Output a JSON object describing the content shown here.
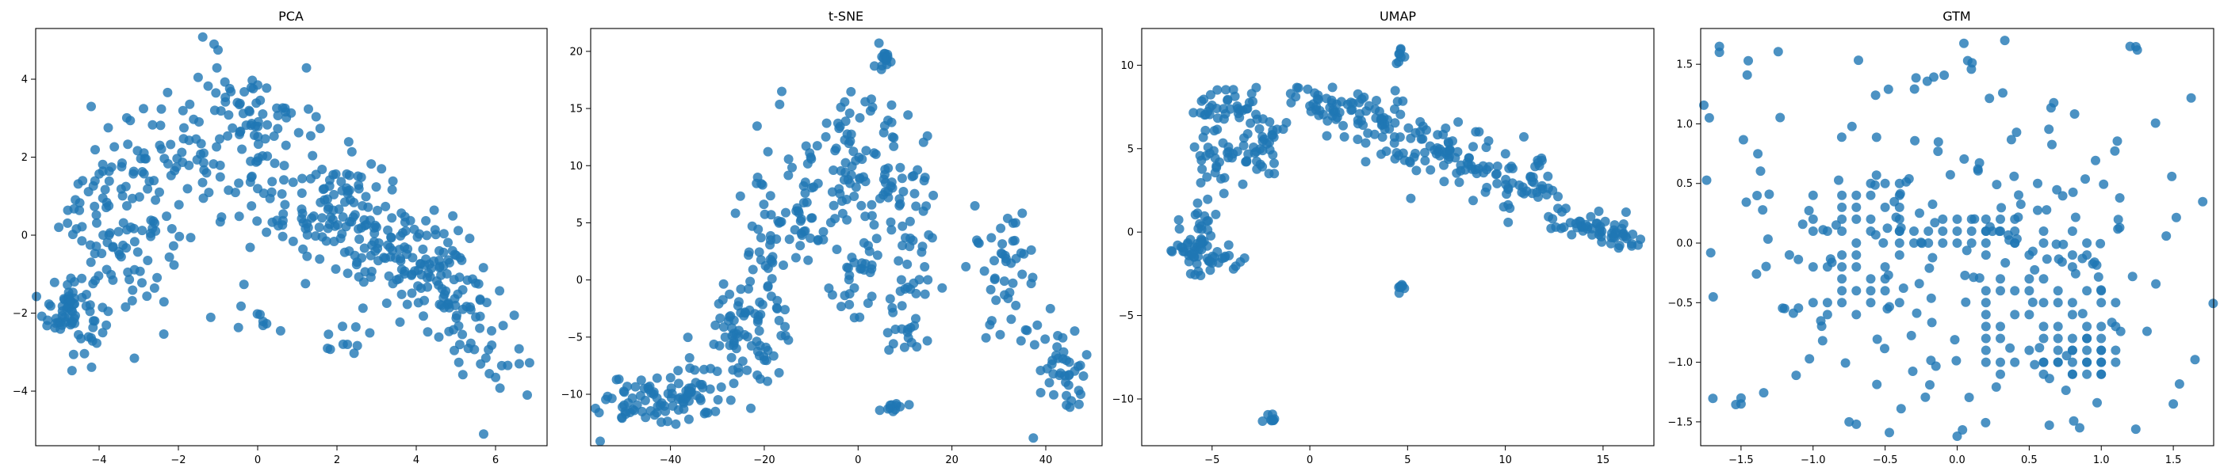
{
  "chart_data": [
    {
      "type": "scatter",
      "title": "PCA",
      "xlabel": "",
      "ylabel": "",
      "xlim": [
        -5.6,
        7.3
      ],
      "ylim": [
        -5.4,
        5.3
      ],
      "xticks": [
        -4,
        -2,
        0,
        2,
        4,
        6
      ],
      "yticks": [
        -4,
        -2,
        0,
        2,
        4
      ],
      "xtick_labels": [
        "−4",
        "−2",
        "0",
        "2",
        "4",
        "6"
      ],
      "ytick_labels": [
        "−4",
        "−2",
        "0",
        "2",
        "4"
      ],
      "color": "#1f77b4",
      "grid": false,
      "clusters": [
        {
          "cx": -4.7,
          "cy": -1.9,
          "sx": 0.35,
          "sy": 0.55,
          "n": 70
        },
        {
          "cx": -4.0,
          "cy": 0.8,
          "sx": 0.5,
          "sy": 0.9,
          "n": 55
        },
        {
          "cx": -3.2,
          "cy": -0.6,
          "sx": 0.6,
          "sy": 1.0,
          "n": 45
        },
        {
          "cx": -2.2,
          "cy": 1.8,
          "sx": 0.6,
          "sy": 0.8,
          "n": 40
        },
        {
          "cx": -1.0,
          "cy": 2.4,
          "sx": 0.7,
          "sy": 0.9,
          "n": 45
        },
        {
          "cx": 0.2,
          "cy": 3.0,
          "sx": 0.6,
          "sy": 0.6,
          "n": 35
        },
        {
          "cx": 0.9,
          "cy": 1.2,
          "sx": 0.9,
          "sy": 1.0,
          "n": 60
        },
        {
          "cx": 2.1,
          "cy": 0.6,
          "sx": 0.6,
          "sy": 0.7,
          "n": 70
        },
        {
          "cx": 3.3,
          "cy": -0.3,
          "sx": 0.6,
          "sy": 0.7,
          "n": 55
        },
        {
          "cx": 4.3,
          "cy": -0.9,
          "sx": 0.6,
          "sy": 0.6,
          "n": 60
        },
        {
          "cx": 5.1,
          "cy": -1.6,
          "sx": 0.6,
          "sy": 0.8,
          "n": 45
        },
        {
          "cx": 6.0,
          "cy": -3.0,
          "sx": 0.5,
          "sy": 0.6,
          "n": 15
        },
        {
          "cx": 0.0,
          "cy": -2.1,
          "sx": 0.6,
          "sy": 0.3,
          "n": 10
        },
        {
          "cx": 2.0,
          "cy": -2.6,
          "sx": 0.4,
          "sy": 0.3,
          "n": 10
        }
      ],
      "points": [
        [
          -1.1,
          4.9
        ],
        [
          -1.0,
          4.75
        ],
        [
          -4.2,
          3.3
        ],
        [
          5.7,
          -5.1
        ],
        [
          6.8,
          -4.1
        ],
        [
          0,
          3.85
        ]
      ]
    },
    {
      "type": "scatter",
      "title": "t-SNE",
      "xlabel": "",
      "ylabel": "",
      "xlim": [
        -57,
        52
      ],
      "ylim": [
        -14.5,
        22
      ],
      "xticks": [
        -40,
        -20,
        0,
        20,
        40
      ],
      "yticks": [
        -10,
        -5,
        0,
        5,
        10,
        15,
        20
      ],
      "xtick_labels": [
        "−40",
        "−20",
        "0",
        "20",
        "40"
      ],
      "ytick_labels": [
        "−10",
        "−5",
        "0",
        "5",
        "10",
        "15",
        "20"
      ],
      "color": "#1f77b4",
      "grid": false,
      "clusters": [
        {
          "cx": -46,
          "cy": -10.5,
          "sx": 5,
          "sy": 1.2,
          "n": 55
        },
        {
          "cx": -36,
          "cy": -10.0,
          "sx": 3.5,
          "sy": 1.5,
          "n": 40
        },
        {
          "cx": -28,
          "cy": -4.0,
          "sx": 2.5,
          "sy": 2.5,
          "n": 30
        },
        {
          "cx": -22,
          "cy": -6.0,
          "sx": 3,
          "sy": 2.5,
          "n": 35
        },
        {
          "cx": -20,
          "cy": 3.0,
          "sx": 3,
          "sy": 5,
          "n": 55
        },
        {
          "cx": -12,
          "cy": 6.0,
          "sx": 3,
          "sy": 3,
          "n": 40
        },
        {
          "cx": -3,
          "cy": 10.5,
          "sx": 3.5,
          "sy": 3,
          "n": 45
        },
        {
          "cx": 4,
          "cy": 10.0,
          "sx": 3,
          "sy": 3.5,
          "n": 40
        },
        {
          "cx": 0,
          "cy": 0.5,
          "sx": 3,
          "sy": 2,
          "n": 30
        },
        {
          "cx": 12,
          "cy": 5.0,
          "sx": 3,
          "sy": 3,
          "n": 40
        },
        {
          "cx": 10,
          "cy": -3.0,
          "sx": 2,
          "sy": 2.5,
          "n": 25
        },
        {
          "cx": 30,
          "cy": 1.0,
          "sx": 3.5,
          "sy": 3,
          "n": 45
        },
        {
          "cx": 42,
          "cy": -7.5,
          "sx": 4,
          "sy": 2,
          "n": 45
        },
        {
          "cx": 5.5,
          "cy": 19.5,
          "sx": 0.8,
          "sy": 0.5,
          "n": 15
        },
        {
          "cx": 7,
          "cy": -11.3,
          "sx": 1,
          "sy": 0.3,
          "n": 10
        }
      ],
      "points": []
    },
    {
      "type": "scatter",
      "title": "UMAP",
      "xlabel": "",
      "ylabel": "",
      "xlim": [
        -8.6,
        17.6
      ],
      "ylim": [
        -12.8,
        12.2
      ],
      "xticks": [
        -5,
        0,
        5,
        10,
        15
      ],
      "yticks": [
        -10,
        -5,
        0,
        5,
        10
      ],
      "xtick_labels": [
        "−5",
        "0",
        "5",
        "10",
        "15"
      ],
      "ytick_labels": [
        "−10",
        "−5",
        "0",
        "5",
        "10"
      ],
      "color": "#1f77b4",
      "grid": false,
      "clusters": [
        {
          "cx": -5.7,
          "cy": -0.5,
          "sx": 0.7,
          "sy": 1.1,
          "n": 50
        },
        {
          "cx": -4.6,
          "cy": -1.5,
          "sx": 0.8,
          "sy": 0.5,
          "n": 20
        },
        {
          "cx": -5.0,
          "cy": 4.0,
          "sx": 0.8,
          "sy": 1.2,
          "n": 30
        },
        {
          "cx": -4.3,
          "cy": 7.5,
          "sx": 0.7,
          "sy": 0.6,
          "n": 30
        },
        {
          "cx": -2.6,
          "cy": 5.5,
          "sx": 0.8,
          "sy": 1.2,
          "n": 45
        },
        {
          "cx": 0.8,
          "cy": 7.5,
          "sx": 1.0,
          "sy": 0.6,
          "n": 40
        },
        {
          "cx": 3.5,
          "cy": 6.5,
          "sx": 1.0,
          "sy": 1.0,
          "n": 45
        },
        {
          "cx": 6.5,
          "cy": 5.0,
          "sx": 1.3,
          "sy": 0.9,
          "n": 45
        },
        {
          "cx": 8.0,
          "cy": 4.0,
          "sx": 0.9,
          "sy": 1.0,
          "n": 30
        },
        {
          "cx": 11.0,
          "cy": 2.8,
          "sx": 1.0,
          "sy": 0.9,
          "n": 45
        },
        {
          "cx": 14.0,
          "cy": 0.5,
          "sx": 1.0,
          "sy": 0.5,
          "n": 40
        },
        {
          "cx": 15.9,
          "cy": -0.4,
          "sx": 0.5,
          "sy": 0.3,
          "n": 20
        },
        {
          "cx": 4.6,
          "cy": 10.6,
          "sx": 0.15,
          "sy": 0.3,
          "n": 8
        },
        {
          "cx": 4.6,
          "cy": -3.4,
          "sx": 0.15,
          "sy": 0.3,
          "n": 8
        },
        {
          "cx": -1.9,
          "cy": -11.2,
          "sx": 0.2,
          "sy": 0.15,
          "n": 8
        }
      ],
      "points": []
    },
    {
      "type": "scatter",
      "title": "GTM",
      "xlabel": "",
      "ylabel": "",
      "xlim": [
        -1.78,
        1.78
      ],
      "ylim": [
        -1.7,
        1.8
      ],
      "xticks": [
        -1.5,
        -1.0,
        -0.5,
        0.0,
        0.5,
        1.0,
        1.5
      ],
      "yticks": [
        -1.5,
        -1.0,
        -0.5,
        0.0,
        0.5,
        1.0,
        1.5
      ],
      "xtick_labels": [
        "−1.5",
        "−1.0",
        "−0.5",
        "0.0",
        "0.5",
        "1.0",
        "1.5"
      ],
      "ytick_labels": [
        "−1.5",
        "−1.0",
        "−0.5",
        "0.0",
        "0.5",
        "1.0",
        "1.5"
      ],
      "color": "#1f77b4",
      "grid": false,
      "grid_blocks": [
        {
          "x0": -1.0,
          "x1": -0.4,
          "y0": -0.6,
          "y1": 0.5,
          "step": 0.1,
          "keep": 0.6
        },
        {
          "x0": -0.4,
          "x1": 0.4,
          "y0": 0.0,
          "y1": 0.2,
          "step": 0.1,
          "keep": 0.85
        },
        {
          "x0": 0.2,
          "x1": 1.1,
          "y0": -1.1,
          "y1": 0.1,
          "step": 0.1,
          "keep": 0.5
        },
        {
          "x0": 0.6,
          "x1": 1.0,
          "y0": -1.1,
          "y1": -0.8,
          "step": 0.1,
          "keep": 0.9
        }
      ],
      "clusters": [
        {
          "cx": 0.0,
          "cy": 0.0,
          "sx": 0.95,
          "sy": 0.95,
          "n": 220
        }
      ],
      "points": [
        [
          -1.65,
          1.65
        ],
        [
          -1.65,
          1.6
        ],
        [
          -1.72,
          1.05
        ],
        [
          -1.45,
          1.53
        ],
        [
          -1.5,
          -1.3
        ],
        [
          -1.5,
          -1.35
        ],
        [
          -0.75,
          -1.5
        ],
        [
          -0.7,
          -1.52
        ],
        [
          0.0,
          -1.62
        ],
        [
          0.85,
          -1.55
        ],
        [
          1.5,
          -1.35
        ],
        [
          1.2,
          1.65
        ],
        [
          1.25,
          1.62
        ]
      ]
    }
  ]
}
